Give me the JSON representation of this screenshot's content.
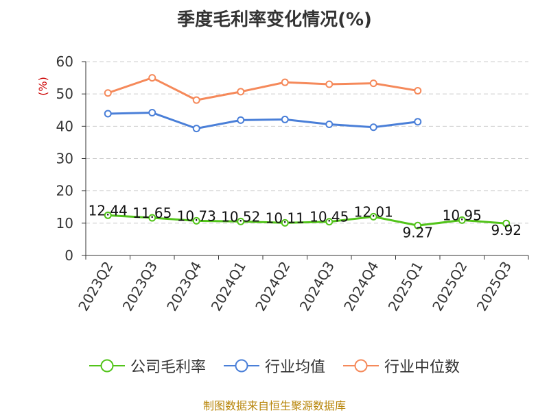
{
  "chart_data": {
    "type": "line",
    "title": "季度毛利率变化情况(%)",
    "ylabel": "(%)",
    "xlabel": "",
    "ylim": [
      0,
      60
    ],
    "yticks": [
      0,
      10,
      20,
      30,
      40,
      50,
      60
    ],
    "grid": true,
    "legend_position": "bottom",
    "categories": [
      "2023Q2",
      "2023Q3",
      "2023Q4",
      "2024Q1",
      "2024Q2",
      "2024Q3",
      "2024Q4",
      "2025Q1",
      "2025Q2",
      "2025Q3"
    ],
    "series": [
      {
        "name": "公司毛利率",
        "color": "#52c41a",
        "values": [
          12.44,
          11.65,
          10.73,
          10.52,
          10.11,
          10.45,
          12.01,
          9.27,
          10.95,
          9.92
        ],
        "labels": [
          "12.44",
          "11.65",
          "10.73",
          "10.52",
          "10.11",
          "10.45",
          "12.01",
          "9.27",
          "10.95",
          "9.92"
        ]
      },
      {
        "name": "行业均值",
        "color": "#4a7fd8",
        "values": [
          43.9,
          44.2,
          39.3,
          41.9,
          42.1,
          40.6,
          39.7,
          41.4,
          null,
          null
        ]
      },
      {
        "name": "行业中位数",
        "color": "#f5895a",
        "values": [
          50.3,
          55.0,
          48.1,
          50.7,
          53.6,
          53.0,
          53.3,
          51.0,
          null,
          null
        ]
      }
    ]
  },
  "source_note": "制图数据来自恒生聚源数据库"
}
